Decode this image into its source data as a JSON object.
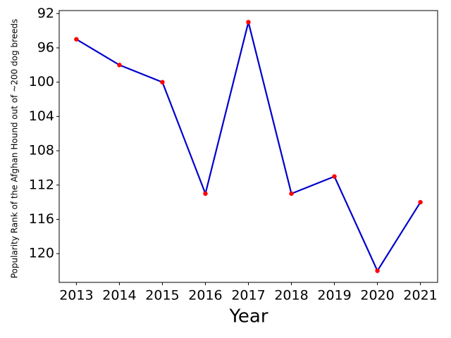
{
  "chart_data": {
    "type": "line",
    "x_label": "Year",
    "y_label": "Popularity Rank of the Afghan Hound out of ~200 dog breeds",
    "x": [
      2013,
      2014,
      2015,
      2016,
      2017,
      2018,
      2019,
      2020,
      2021
    ],
    "values": [
      95,
      98,
      100,
      113,
      93,
      113,
      111,
      122,
      114
    ],
    "line_color": "#0000cd",
    "marker_color": "#ff0000",
    "xlim": [
      2012.6,
      2021.4
    ],
    "xticks": [
      2013,
      2014,
      2015,
      2016,
      2017,
      2018,
      2019,
      2020,
      2021
    ],
    "ylim": [
      91.65,
      123.35
    ],
    "yticks": [
      92,
      96,
      100,
      104,
      108,
      112,
      116,
      120
    ],
    "invert_y": true,
    "grid": false
  }
}
